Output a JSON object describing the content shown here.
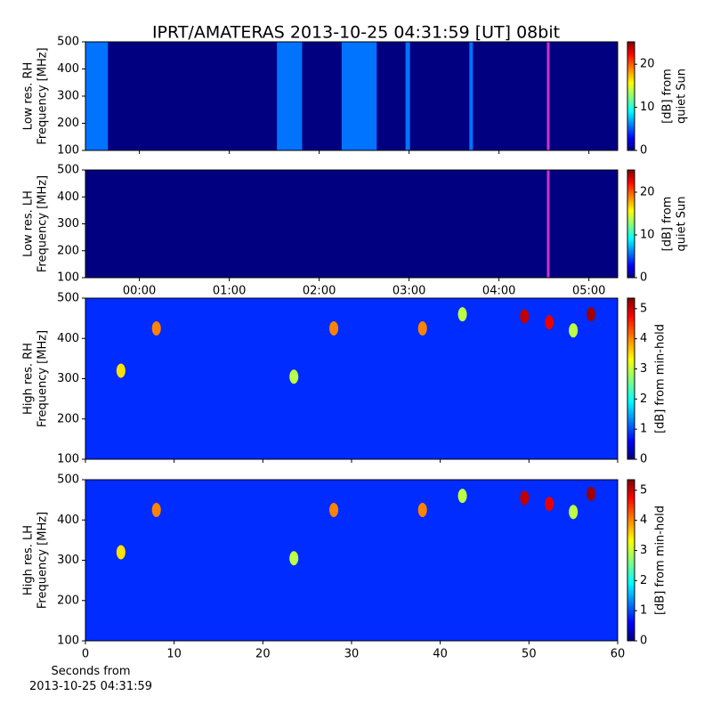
{
  "title": "IPRT/AMATERAS 2013-10-25 04:31:59 [UT]   08bit",
  "footnote": [
    "Seconds from",
    "2013-10-25 04:31:59"
  ],
  "chart_data": [
    {
      "type": "spectrogram",
      "ylabel": [
        "Low res. RH",
        "Frequency [MHz]"
      ],
      "xlim": [
        -0.6,
        5.32
      ],
      "xticks": [
        {
          "value": 0,
          "label": "00:00"
        },
        {
          "value": 1,
          "label": "01:00"
        },
        {
          "value": 2,
          "label": "02:00"
        },
        {
          "value": 3,
          "label": "03:00"
        },
        {
          "value": 4,
          "label": "04:00"
        },
        {
          "value": 5,
          "label": "05:00"
        }
      ],
      "xticklabels": false,
      "ylim": [
        100,
        500
      ],
      "yticks": [
        100,
        200,
        300,
        400,
        500
      ],
      "colormap": "jet",
      "background": 0,
      "clim": [
        0,
        25.2
      ],
      "cticks": [
        0,
        10,
        20
      ],
      "clabel": [
        "[dB] from",
        "quiet Sun"
      ],
      "segments": [
        {
          "start": -0.6,
          "end": -0.35,
          "level": 6
        },
        {
          "start": 1.53,
          "end": 1.81,
          "level": 6
        },
        {
          "start": 2.25,
          "end": 2.64,
          "level": 6
        },
        {
          "start": 2.96,
          "end": 3.01,
          "level": 6
        },
        {
          "start": 3.67,
          "end": 3.71,
          "level": 6
        }
      ],
      "window": {
        "start": 4.533,
        "end": 4.55,
        "color": "#cc33cc"
      }
    },
    {
      "type": "spectrogram",
      "ylabel": [
        "Low res. LH",
        "Frequency [MHz]"
      ],
      "xlim": [
        -0.6,
        5.32
      ],
      "xticks": [
        {
          "value": 0,
          "label": "00:00"
        },
        {
          "value": 1,
          "label": "01:00"
        },
        {
          "value": 2,
          "label": "02:00"
        },
        {
          "value": 3,
          "label": "03:00"
        },
        {
          "value": 4,
          "label": "04:00"
        },
        {
          "value": 5,
          "label": "05:00"
        }
      ],
      "xticklabels": true,
      "ylim": [
        100,
        500
      ],
      "yticks": [
        100,
        200,
        300,
        400,
        500
      ],
      "colormap": "jet",
      "background": 0,
      "clim": [
        0,
        25.2
      ],
      "cticks": [
        0,
        10,
        20
      ],
      "clabel": [
        "[dB] from",
        "quiet Sun"
      ],
      "segments": [],
      "window": {
        "start": 4.533,
        "end": 4.55,
        "color": "#cc33cc"
      }
    },
    {
      "type": "spectrogram",
      "ylabel": [
        "High res. RH",
        "Frequency [MHz]"
      ],
      "xlim": [
        0,
        60
      ],
      "xticks": [
        0,
        10,
        20,
        30,
        40,
        50,
        60
      ],
      "xticklabels": false,
      "ylim": [
        100,
        500
      ],
      "yticks": [
        100,
        200,
        300,
        400,
        500
      ],
      "colormap": "jet",
      "background": 0.9,
      "clim": [
        0,
        5.35
      ],
      "cticks": [
        0,
        1,
        2,
        3,
        4,
        5
      ],
      "clabel": [
        "[dB] from min-hold"
      ],
      "spots": [
        {
          "x": 49.5,
          "y": 455,
          "value": 5
        },
        {
          "x": 52.3,
          "y": 440,
          "value": 4.8
        },
        {
          "x": 57,
          "y": 460,
          "value": 5.2
        },
        {
          "x": 8,
          "y": 425,
          "value": 4
        },
        {
          "x": 28,
          "y": 425,
          "value": 4
        },
        {
          "x": 38,
          "y": 425,
          "value": 4
        },
        {
          "x": 4,
          "y": 320,
          "value": 3.5
        },
        {
          "x": 23.5,
          "y": 305,
          "value": 3
        },
        {
          "x": 42.5,
          "y": 460,
          "value": 3
        },
        {
          "x": 55,
          "y": 420,
          "value": 3
        }
      ]
    },
    {
      "type": "spectrogram",
      "ylabel": [
        "High res. LH",
        "Frequency [MHz]"
      ],
      "xlim": [
        0,
        60
      ],
      "xticks": [
        0,
        10,
        20,
        30,
        40,
        50,
        60
      ],
      "xticklabels": true,
      "ylim": [
        100,
        500
      ],
      "yticks": [
        100,
        200,
        300,
        400,
        500
      ],
      "colormap": "jet",
      "background": 0.9,
      "clim": [
        0,
        5.35
      ],
      "cticks": [
        0,
        1,
        2,
        3,
        4,
        5
      ],
      "clabel": [
        "[dB] from min-hold"
      ],
      "spots": [
        {
          "x": 49.5,
          "y": 455,
          "value": 5
        },
        {
          "x": 52.3,
          "y": 440,
          "value": 4.8
        },
        {
          "x": 57,
          "y": 465,
          "value": 5.2
        },
        {
          "x": 8,
          "y": 425,
          "value": 4
        },
        {
          "x": 28,
          "y": 425,
          "value": 4
        },
        {
          "x": 38,
          "y": 425,
          "value": 4
        },
        {
          "x": 4,
          "y": 320,
          "value": 3.5
        },
        {
          "x": 23.5,
          "y": 305,
          "value": 3
        },
        {
          "x": 42.5,
          "y": 460,
          "value": 3
        },
        {
          "x": 55,
          "y": 420,
          "value": 3
        }
      ]
    }
  ]
}
